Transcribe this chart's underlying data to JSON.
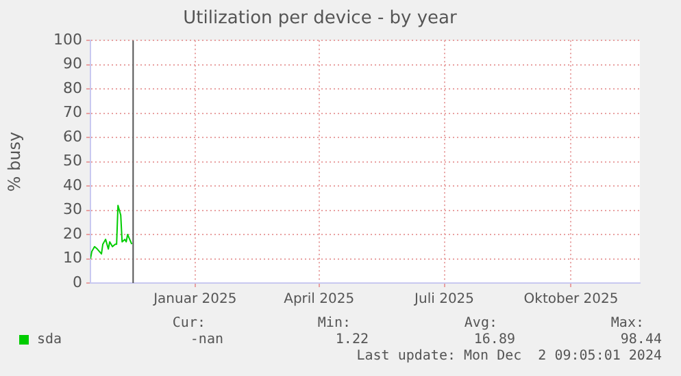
{
  "chart_data": {
    "type": "line",
    "title": "Utilization per device - by year",
    "ylabel": "% busy",
    "x": [
      "2024-11-01",
      "2024-11-02",
      "2024-11-04",
      "2024-11-06",
      "2024-11-09",
      "2024-11-10",
      "2024-11-12",
      "2024-11-14",
      "2024-11-15",
      "2024-11-17",
      "2024-11-19",
      "2024-11-20",
      "2024-11-21",
      "2024-11-23",
      "2024-11-24",
      "2024-11-26",
      "2024-11-27",
      "2024-11-28",
      "2024-12-01"
    ],
    "series": [
      {
        "name": "sda",
        "color": "#00cc00",
        "values": [
          10,
          13,
          15,
          14,
          12,
          16,
          18,
          14,
          17,
          15,
          16,
          16,
          32,
          28,
          17,
          18,
          17,
          20,
          16
        ]
      }
    ],
    "xlim": [
      "2024-11-01",
      "2025-12-05"
    ],
    "xticks": [
      {
        "value": "2025-01-16",
        "label": "Januar 2025"
      },
      {
        "value": "2025-04-16",
        "label": "April 2025"
      },
      {
        "value": "2025-07-16",
        "label": "Juli 2025"
      },
      {
        "value": "2025-10-16",
        "label": "Oktober 2025"
      }
    ],
    "ylim": [
      0,
      100
    ],
    "yticks": [
      0,
      10,
      20,
      30,
      40,
      50,
      60,
      70,
      80,
      90,
      100
    ],
    "ref_lines": [
      {
        "axis": "x",
        "value": "2024-12-02",
        "color": "#555555"
      }
    ],
    "grid": true,
    "legend": "bottom left",
    "marker": "none",
    "line_style": "solid",
    "annotations": [
      "Cur:",
      "Min:",
      "Avg:",
      "Max:",
      "-nan",
      "1.22",
      "16.89",
      "98.44",
      "Last update: Mon Dec  2 09:05:01 2024"
    ]
  }
}
